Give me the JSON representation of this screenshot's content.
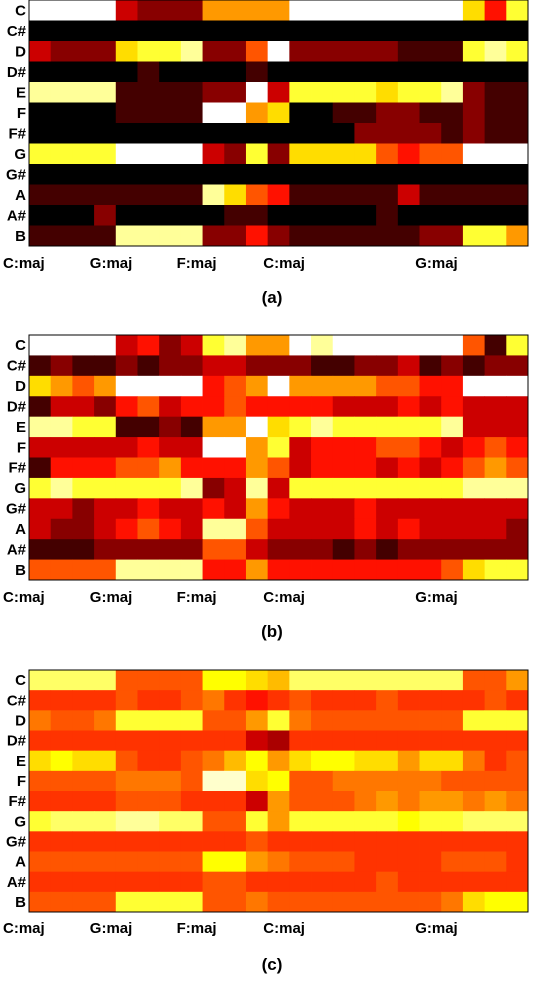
{
  "chart_data": [
    {
      "type": "heatmap",
      "caption": "(a)",
      "rows": [
        "C",
        "C#",
        "D",
        "D#",
        "E",
        "F",
        "F#",
        "G",
        "G#",
        "A",
        "A#",
        "B"
      ],
      "x_labels": [
        "C:maj",
        "G:maj",
        "F:maj",
        "C:maj",
        "G:maj"
      ],
      "x_label_columns": [
        0,
        4,
        8,
        12,
        19
      ],
      "colormap": "hot",
      "values": [
        [
          1,
          1,
          1,
          1,
          0.3,
          0.2,
          0.2,
          0.2,
          0.6,
          0.6,
          0.6,
          0.6,
          1,
          1,
          1,
          1,
          1,
          1,
          1,
          1,
          0.7,
          0.4,
          0.8
        ],
        [
          0,
          0,
          0,
          0,
          0,
          0,
          0,
          0,
          0,
          0,
          0,
          0,
          0,
          0,
          0,
          0,
          0,
          0,
          0,
          0,
          0,
          0,
          0
        ],
        [
          0.3,
          0.2,
          0.2,
          0.2,
          0.7,
          0.8,
          0.8,
          0.9,
          0.2,
          0.2,
          0.5,
          1,
          0.2,
          0.2,
          0.2,
          0.2,
          0.2,
          0.1,
          0.1,
          0.1,
          0.8,
          0.9,
          0.8
        ],
        [
          0,
          0,
          0,
          0,
          0,
          0.1,
          0,
          0,
          0,
          0,
          0.1,
          0,
          0,
          0,
          0,
          0,
          0,
          0,
          0,
          0,
          0,
          0,
          0
        ],
        [
          0.9,
          0.9,
          0.9,
          0.9,
          0.1,
          0.1,
          0.1,
          0.1,
          0.2,
          0.2,
          1,
          0.3,
          0.8,
          0.8,
          0.8,
          0.8,
          0.7,
          0.8,
          0.8,
          0.9,
          0.2,
          0.1,
          0.1
        ],
        [
          0,
          0,
          0,
          0,
          0.1,
          0.1,
          0.1,
          0.1,
          1,
          1,
          0.6,
          0.7,
          0,
          0,
          0.1,
          0.1,
          0.2,
          0.2,
          0.1,
          0.1,
          0.2,
          0.1,
          0.1
        ],
        [
          0,
          0,
          0,
          0,
          0,
          0,
          0,
          0,
          0,
          0,
          0,
          0,
          0,
          0,
          0,
          0.2,
          0.2,
          0.2,
          0.2,
          0.1,
          0.2,
          0.1,
          0.1
        ],
        [
          0.8,
          0.8,
          0.8,
          0.8,
          1,
          1,
          1,
          1,
          0.3,
          0.2,
          0.8,
          0.2,
          0.7,
          0.7,
          0.7,
          0.7,
          0.5,
          0.4,
          0.5,
          0.5,
          1,
          1,
          1
        ],
        [
          0,
          0,
          0,
          0,
          0,
          0,
          0,
          0,
          0,
          0,
          0,
          0,
          0,
          0,
          0,
          0,
          0,
          0,
          0,
          0,
          0,
          0,
          0
        ],
        [
          0.1,
          0.1,
          0.1,
          0.1,
          0.1,
          0.1,
          0.1,
          0.1,
          0.9,
          0.7,
          0.5,
          0.4,
          0.1,
          0.1,
          0.1,
          0.1,
          0.1,
          0.3,
          0.1,
          0.1,
          0.1,
          0.1,
          0.1
        ],
        [
          0,
          0,
          0,
          0.2,
          0,
          0,
          0,
          0,
          0,
          0.1,
          0.1,
          0,
          0,
          0,
          0,
          0,
          0.1,
          0,
          0,
          0,
          0,
          0,
          0
        ],
        [
          0.1,
          0.1,
          0.1,
          0.1,
          0.9,
          0.9,
          0.9,
          0.9,
          0.2,
          0.2,
          0.4,
          0.2,
          0.1,
          0.1,
          0.1,
          0.1,
          0.1,
          0.1,
          0.2,
          0.2,
          0.8,
          0.8,
          0.6
        ]
      ]
    },
    {
      "type": "heatmap",
      "caption": "(b)",
      "rows": [
        "C",
        "C#",
        "D",
        "D#",
        "E",
        "F",
        "F#",
        "G",
        "G#",
        "A",
        "A#",
        "B"
      ],
      "x_labels": [
        "C:maj",
        "G:maj",
        "F:maj",
        "C:maj",
        "G:maj"
      ],
      "x_label_columns": [
        0,
        4,
        8,
        12,
        19
      ],
      "colormap": "hot",
      "values": [
        [
          1,
          1,
          1,
          1,
          0.3,
          0.4,
          0.2,
          0.3,
          0.8,
          0.9,
          0.6,
          0.6,
          1,
          0.9,
          1,
          1,
          1,
          1,
          1,
          1,
          0.5,
          0.1,
          0.8
        ],
        [
          0.1,
          0.2,
          0.1,
          0.1,
          0.2,
          0.1,
          0.2,
          0.2,
          0.3,
          0.3,
          0.2,
          0.2,
          0.2,
          0.1,
          0.1,
          0.2,
          0.2,
          0.3,
          0.1,
          0.2,
          0.1,
          0.2,
          0.2
        ],
        [
          0.7,
          0.6,
          0.5,
          0.6,
          1,
          1,
          1,
          1,
          0.4,
          0.5,
          0.6,
          1,
          0.6,
          0.6,
          0.6,
          0.6,
          0.5,
          0.5,
          0.4,
          0.4,
          1,
          1,
          1
        ],
        [
          0.1,
          0.3,
          0.3,
          0.2,
          0.4,
          0.5,
          0.3,
          0.4,
          0.4,
          0.5,
          0.4,
          0.4,
          0.4,
          0.4,
          0.3,
          0.3,
          0.3,
          0.4,
          0.3,
          0.4,
          0.3,
          0.3,
          0.3
        ],
        [
          0.9,
          0.9,
          0.8,
          0.8,
          0.1,
          0.1,
          0.2,
          0.1,
          0.6,
          0.6,
          1,
          0.7,
          0.8,
          0.9,
          0.8,
          0.8,
          0.8,
          0.8,
          0.8,
          0.9,
          0.3,
          0.3,
          0.3
        ],
        [
          0.3,
          0.3,
          0.3,
          0.3,
          0.3,
          0.4,
          0.3,
          0.3,
          1,
          1,
          0.6,
          0.8,
          0.3,
          0.4,
          0.4,
          0.4,
          0.5,
          0.5,
          0.4,
          0.3,
          0.4,
          0.5,
          0.4
        ],
        [
          0.1,
          0.4,
          0.4,
          0.4,
          0.5,
          0.5,
          0.6,
          0.4,
          0.4,
          0.4,
          0.6,
          0.5,
          0.3,
          0.4,
          0.4,
          0.4,
          0.3,
          0.4,
          0.3,
          0.4,
          0.5,
          0.6,
          0.5
        ],
        [
          0.8,
          0.9,
          0.8,
          0.8,
          0.8,
          0.8,
          0.8,
          0.9,
          0.2,
          0.3,
          0.9,
          0.3,
          0.8,
          0.8,
          0.8,
          0.8,
          0.8,
          0.8,
          0.8,
          0.8,
          0.9,
          0.9,
          0.9
        ],
        [
          0.3,
          0.3,
          0.2,
          0.3,
          0.3,
          0.4,
          0.3,
          0.3,
          0.4,
          0.3,
          0.6,
          0.4,
          0.3,
          0.3,
          0.3,
          0.4,
          0.3,
          0.3,
          0.3,
          0.3,
          0.3,
          0.3,
          0.3
        ],
        [
          0.3,
          0.2,
          0.2,
          0.3,
          0.4,
          0.5,
          0.4,
          0.3,
          0.9,
          0.9,
          0.5,
          0.3,
          0.3,
          0.3,
          0.3,
          0.4,
          0.3,
          0.4,
          0.3,
          0.3,
          0.3,
          0.3,
          0.2
        ],
        [
          0.1,
          0.1,
          0.1,
          0.2,
          0.2,
          0.2,
          0.2,
          0.2,
          0.5,
          0.5,
          0.3,
          0.2,
          0.2,
          0.2,
          0.1,
          0.2,
          0.1,
          0.2,
          0.2,
          0.2,
          0.2,
          0.2,
          0.2
        ],
        [
          0.5,
          0.5,
          0.5,
          0.5,
          0.9,
          0.9,
          0.9,
          0.9,
          0.4,
          0.4,
          0.6,
          0.4,
          0.4,
          0.4,
          0.4,
          0.4,
          0.4,
          0.4,
          0.4,
          0.5,
          0.7,
          0.8,
          0.8
        ]
      ]
    },
    {
      "type": "heatmap",
      "caption": "(c)",
      "rows": [
        "C",
        "C#",
        "D",
        "D#",
        "E",
        "F",
        "F#",
        "G",
        "G#",
        "A",
        "A#",
        "B"
      ],
      "x_labels": [
        "C:maj",
        "G:maj",
        "F:maj",
        "C:maj",
        "G:maj"
      ],
      "x_label_columns": [
        0,
        4,
        8,
        12,
        19
      ],
      "colormap": "hot",
      "values": [
        [
          0.85,
          0.85,
          0.85,
          0.85,
          0.5,
          0.5,
          0.5,
          0.5,
          0.75,
          0.75,
          0.7,
          0.65,
          0.85,
          0.85,
          0.85,
          0.85,
          0.85,
          0.85,
          0.85,
          0.85,
          0.5,
          0.5,
          0.6
        ],
        [
          0.45,
          0.45,
          0.45,
          0.45,
          0.5,
          0.45,
          0.45,
          0.5,
          0.55,
          0.45,
          0.4,
          0.45,
          0.5,
          0.45,
          0.45,
          0.45,
          0.5,
          0.45,
          0.45,
          0.45,
          0.45,
          0.5,
          0.45
        ],
        [
          0.55,
          0.5,
          0.5,
          0.55,
          0.8,
          0.8,
          0.8,
          0.8,
          0.5,
          0.5,
          0.6,
          0.8,
          0.55,
          0.5,
          0.5,
          0.5,
          0.5,
          0.5,
          0.5,
          0.5,
          0.8,
          0.8,
          0.8
        ],
        [
          0.45,
          0.45,
          0.45,
          0.45,
          0.45,
          0.45,
          0.45,
          0.45,
          0.45,
          0.45,
          0.3,
          0.25,
          0.45,
          0.45,
          0.45,
          0.45,
          0.45,
          0.45,
          0.45,
          0.45,
          0.45,
          0.45,
          0.45
        ],
        [
          0.7,
          0.75,
          0.7,
          0.7,
          0.5,
          0.45,
          0.45,
          0.5,
          0.55,
          0.65,
          0.75,
          0.6,
          0.7,
          0.75,
          0.75,
          0.7,
          0.7,
          0.6,
          0.7,
          0.7,
          0.55,
          0.45,
          0.5
        ],
        [
          0.5,
          0.5,
          0.5,
          0.5,
          0.55,
          0.55,
          0.55,
          0.5,
          0.95,
          0.95,
          0.7,
          0.75,
          0.5,
          0.5,
          0.55,
          0.55,
          0.55,
          0.55,
          0.55,
          0.5,
          0.5,
          0.5,
          0.5
        ],
        [
          0.45,
          0.45,
          0.45,
          0.45,
          0.5,
          0.5,
          0.5,
          0.45,
          0.45,
          0.45,
          0.3,
          0.6,
          0.5,
          0.5,
          0.5,
          0.55,
          0.6,
          0.55,
          0.6,
          0.6,
          0.55,
          0.6,
          0.55
        ],
        [
          0.8,
          0.85,
          0.85,
          0.85,
          0.9,
          0.9,
          0.85,
          0.85,
          0.5,
          0.5,
          0.8,
          0.6,
          0.8,
          0.8,
          0.8,
          0.8,
          0.8,
          0.75,
          0.8,
          0.8,
          0.85,
          0.85,
          0.85
        ],
        [
          0.45,
          0.45,
          0.45,
          0.45,
          0.45,
          0.45,
          0.45,
          0.45,
          0.45,
          0.45,
          0.5,
          0.45,
          0.45,
          0.45,
          0.45,
          0.45,
          0.45,
          0.45,
          0.45,
          0.45,
          0.45,
          0.45,
          0.45
        ],
        [
          0.5,
          0.5,
          0.5,
          0.5,
          0.5,
          0.5,
          0.5,
          0.5,
          0.75,
          0.75,
          0.6,
          0.55,
          0.5,
          0.5,
          0.5,
          0.45,
          0.45,
          0.45,
          0.45,
          0.5,
          0.5,
          0.5,
          0.45
        ],
        [
          0.45,
          0.45,
          0.45,
          0.45,
          0.45,
          0.45,
          0.45,
          0.45,
          0.5,
          0.5,
          0.45,
          0.45,
          0.45,
          0.45,
          0.45,
          0.45,
          0.5,
          0.45,
          0.45,
          0.45,
          0.45,
          0.45,
          0.45
        ],
        [
          0.5,
          0.5,
          0.5,
          0.5,
          0.8,
          0.8,
          0.8,
          0.8,
          0.5,
          0.5,
          0.55,
          0.5,
          0.5,
          0.5,
          0.5,
          0.5,
          0.5,
          0.5,
          0.5,
          0.55,
          0.7,
          0.75,
          0.75
        ]
      ]
    }
  ]
}
